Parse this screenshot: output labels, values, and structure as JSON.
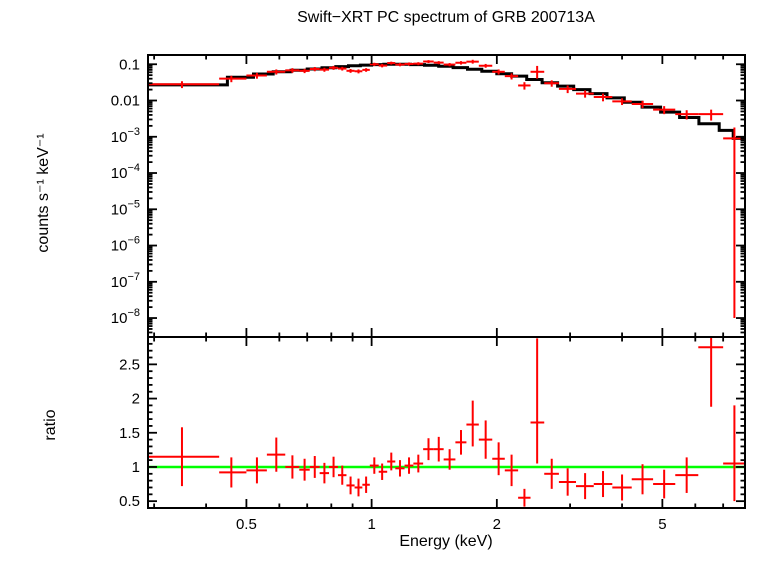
{
  "page": {
    "background": "#ffffff"
  },
  "chart_data": [
    {
      "type": "scatter",
      "panel": "spectrum",
      "title": "Swift−XRT PC spectrum of GRB 200713A",
      "xlabel": "",
      "ylabel": "counts s⁻¹ keV⁻¹",
      "xscale": "log",
      "yscale": "log",
      "xlim": [
        0.29,
        7.9
      ],
      "ylim": [
        3e-09,
        0.18
      ],
      "x_ticks": [
        {
          "v": 0.5,
          "label": "0.5"
        },
        {
          "v": 1,
          "label": "1"
        },
        {
          "v": 2,
          "label": "2"
        },
        {
          "v": 5,
          "label": "5"
        }
      ],
      "y_ticks": [
        {
          "v": 0.1,
          "label": "0.1"
        },
        {
          "v": 0.01,
          "label": "0.01"
        },
        {
          "v": 0.001,
          "exp": -3
        },
        {
          "v": 0.0001,
          "exp": -4
        },
        {
          "v": 1e-05,
          "exp": -5
        },
        {
          "v": 1e-06,
          "exp": -6
        },
        {
          "v": 1e-07,
          "exp": -7
        },
        {
          "v": 1e-08,
          "exp": -8
        }
      ],
      "data_color": "#ff0000",
      "model_color": "#000000",
      "points_format": "[x_lo_keV, x_keV, x_hi_keV, y_lo, y, y_hi] in counts/s/keV",
      "points": [
        [
          0.29,
          0.35,
          0.43,
          0.022,
          0.028,
          0.034
        ],
        [
          0.43,
          0.46,
          0.5,
          0.032,
          0.04,
          0.048
        ],
        [
          0.5,
          0.53,
          0.56,
          0.04,
          0.049,
          0.058
        ],
        [
          0.56,
          0.59,
          0.62,
          0.052,
          0.062,
          0.072
        ],
        [
          0.62,
          0.645,
          0.67,
          0.058,
          0.068,
          0.078
        ],
        [
          0.67,
          0.69,
          0.71,
          0.057,
          0.066,
          0.075
        ],
        [
          0.71,
          0.73,
          0.75,
          0.064,
          0.074,
          0.084
        ],
        [
          0.75,
          0.77,
          0.79,
          0.062,
          0.071,
          0.08
        ],
        [
          0.79,
          0.81,
          0.83,
          0.07,
          0.08,
          0.09
        ],
        [
          0.83,
          0.85,
          0.87,
          0.067,
          0.076,
          0.085
        ],
        [
          0.87,
          0.89,
          0.91,
          0.058,
          0.066,
          0.074
        ],
        [
          0.91,
          0.93,
          0.95,
          0.056,
          0.064,
          0.072
        ],
        [
          0.95,
          0.97,
          0.99,
          0.062,
          0.07,
          0.078
        ],
        [
          0.99,
          1.015,
          1.04,
          0.09,
          0.1,
          0.11
        ],
        [
          1.04,
          1.06,
          1.09,
          0.082,
          0.092,
          0.102
        ],
        [
          1.09,
          1.115,
          1.14,
          0.098,
          0.108,
          0.118
        ],
        [
          1.14,
          1.17,
          1.2,
          0.088,
          0.098,
          0.108
        ],
        [
          1.2,
          1.23,
          1.26,
          0.092,
          0.102,
          0.112
        ],
        [
          1.26,
          1.295,
          1.33,
          0.094,
          0.104,
          0.114
        ],
        [
          1.33,
          1.37,
          1.41,
          0.108,
          0.119,
          0.13
        ],
        [
          1.41,
          1.45,
          1.49,
          0.1,
          0.111,
          0.122
        ],
        [
          1.49,
          1.54,
          1.59,
          0.088,
          0.098,
          0.108
        ],
        [
          1.59,
          1.64,
          1.69,
          0.098,
          0.11,
          0.122
        ],
        [
          1.69,
          1.75,
          1.81,
          0.104,
          0.118,
          0.133
        ],
        [
          1.81,
          1.88,
          1.95,
          0.08,
          0.091,
          0.102
        ],
        [
          1.95,
          2.02,
          2.09,
          0.052,
          0.062,
          0.072
        ],
        [
          2.09,
          2.17,
          2.25,
          0.038,
          0.047,
          0.056
        ],
        [
          2.25,
          2.33,
          2.41,
          0.02,
          0.026,
          0.032
        ],
        [
          2.41,
          2.5,
          2.6,
          0.04,
          0.062,
          0.09
        ],
        [
          2.6,
          2.71,
          2.82,
          0.024,
          0.03,
          0.036
        ],
        [
          2.82,
          2.96,
          3.1,
          0.016,
          0.021,
          0.026
        ],
        [
          3.1,
          3.26,
          3.42,
          0.012,
          0.0155,
          0.019
        ],
        [
          3.42,
          3.6,
          3.79,
          0.0095,
          0.0125,
          0.0155
        ],
        [
          3.79,
          4.0,
          4.22,
          0.0075,
          0.0095,
          0.0115
        ],
        [
          4.22,
          4.48,
          4.75,
          0.0062,
          0.008,
          0.0098
        ],
        [
          4.75,
          5.05,
          5.37,
          0.0042,
          0.0056,
          0.007
        ],
        [
          5.37,
          5.72,
          6.1,
          0.003,
          0.0042,
          0.0054
        ],
        [
          6.1,
          6.55,
          7.0,
          0.0028,
          0.0042,
          0.0056
        ],
        [
          7.0,
          7.45,
          7.88,
          1e-08,
          0.0009,
          0.0018
        ]
      ],
      "model_bins_format": "[e_lo_keV, e_hi_keV, model_value]",
      "model_bins": [
        [
          0.29,
          0.45,
          0.027
        ],
        [
          0.45,
          0.52,
          0.044
        ],
        [
          0.52,
          0.58,
          0.054
        ],
        [
          0.58,
          0.64,
          0.062
        ],
        [
          0.64,
          0.7,
          0.068
        ],
        [
          0.7,
          0.76,
          0.074
        ],
        [
          0.76,
          0.82,
          0.08
        ],
        [
          0.82,
          0.88,
          0.086
        ],
        [
          0.88,
          0.94,
          0.091
        ],
        [
          0.94,
          1.0,
          0.095
        ],
        [
          1.0,
          1.07,
          0.098
        ],
        [
          1.07,
          1.15,
          0.1
        ],
        [
          1.15,
          1.24,
          0.1
        ],
        [
          1.24,
          1.34,
          0.098
        ],
        [
          1.34,
          1.45,
          0.094
        ],
        [
          1.45,
          1.57,
          0.088
        ],
        [
          1.57,
          1.7,
          0.081
        ],
        [
          1.7,
          1.84,
          0.073
        ],
        [
          1.84,
          2.0,
          0.064
        ],
        [
          2.0,
          2.17,
          0.055
        ],
        [
          2.17,
          2.36,
          0.047
        ],
        [
          2.36,
          2.57,
          0.038
        ],
        [
          2.57,
          2.8,
          0.031
        ],
        [
          2.8,
          3.06,
          0.025
        ],
        [
          3.06,
          3.35,
          0.02
        ],
        [
          3.35,
          3.68,
          0.0155
        ],
        [
          3.68,
          4.05,
          0.0118
        ],
        [
          4.05,
          4.47,
          0.0089
        ],
        [
          4.47,
          4.95,
          0.0066
        ],
        [
          4.95,
          5.5,
          0.0048
        ],
        [
          5.5,
          6.12,
          0.0034
        ],
        [
          6.12,
          6.85,
          0.0023
        ],
        [
          6.85,
          7.4,
          0.0015
        ],
        [
          7.4,
          7.88,
          0.0009
        ]
      ]
    },
    {
      "type": "scatter",
      "panel": "ratio",
      "title": "",
      "xlabel": "Energy (keV)",
      "ylabel": "ratio",
      "xscale": "log",
      "yscale": "linear",
      "xlim": [
        0.29,
        7.9
      ],
      "ylim": [
        0.4,
        2.9
      ],
      "x_ticks": [
        {
          "v": 0.5,
          "label": "0.5"
        },
        {
          "v": 1,
          "label": "1"
        },
        {
          "v": 2,
          "label": "2"
        },
        {
          "v": 5,
          "label": "5"
        }
      ],
      "y_ticks": [
        {
          "v": 0.5,
          "label": "0.5"
        },
        {
          "v": 1,
          "label": "1"
        },
        {
          "v": 1.5,
          "label": "1.5"
        },
        {
          "v": 2,
          "label": "2"
        },
        {
          "v": 2.5,
          "label": "2.5"
        }
      ],
      "data_color": "#ff0000",
      "reference_line": {
        "y": 1,
        "color": "#00ff00"
      },
      "points_format": "[x_lo_keV, x_keV, x_hi_keV, ratio_lo, ratio, ratio_hi]",
      "points": [
        [
          0.29,
          0.35,
          0.43,
          0.72,
          1.15,
          1.58
        ],
        [
          0.43,
          0.46,
          0.5,
          0.7,
          0.92,
          1.14
        ],
        [
          0.5,
          0.53,
          0.56,
          0.76,
          0.95,
          1.14
        ],
        [
          0.56,
          0.59,
          0.62,
          0.93,
          1.18,
          1.43
        ],
        [
          0.62,
          0.645,
          0.67,
          0.83,
          1.0,
          1.17
        ],
        [
          0.67,
          0.69,
          0.71,
          0.8,
          0.96,
          1.12
        ],
        [
          0.71,
          0.73,
          0.75,
          0.84,
          1.0,
          1.16
        ],
        [
          0.75,
          0.77,
          0.79,
          0.76,
          0.91,
          1.06
        ],
        [
          0.79,
          0.81,
          0.83,
          0.85,
          1.0,
          1.15
        ],
        [
          0.83,
          0.85,
          0.87,
          0.74,
          0.88,
          1.02
        ],
        [
          0.87,
          0.89,
          0.91,
          0.6,
          0.73,
          0.86
        ],
        [
          0.91,
          0.93,
          0.95,
          0.57,
          0.7,
          0.83
        ],
        [
          0.95,
          0.97,
          0.99,
          0.62,
          0.74,
          0.86
        ],
        [
          0.99,
          1.015,
          1.04,
          0.9,
          1.02,
          1.14
        ],
        [
          1.04,
          1.06,
          1.09,
          0.81,
          0.93,
          1.05
        ],
        [
          1.09,
          1.115,
          1.14,
          0.95,
          1.08,
          1.21
        ],
        [
          1.14,
          1.17,
          1.2,
          0.86,
          0.98,
          1.1
        ],
        [
          1.2,
          1.23,
          1.26,
          0.9,
          1.02,
          1.14
        ],
        [
          1.26,
          1.295,
          1.33,
          0.92,
          1.05,
          1.18
        ],
        [
          1.33,
          1.37,
          1.41,
          1.1,
          1.26,
          1.42
        ],
        [
          1.41,
          1.45,
          1.49,
          1.08,
          1.26,
          1.44
        ],
        [
          1.49,
          1.54,
          1.59,
          0.96,
          1.11,
          1.26
        ],
        [
          1.59,
          1.64,
          1.69,
          1.18,
          1.36,
          1.54
        ],
        [
          1.69,
          1.75,
          1.81,
          1.3,
          1.62,
          1.97
        ],
        [
          1.81,
          1.88,
          1.95,
          1.12,
          1.4,
          1.68
        ],
        [
          1.95,
          2.02,
          2.09,
          0.88,
          1.12,
          1.36
        ],
        [
          2.09,
          2.17,
          2.25,
          0.72,
          0.95,
          1.18
        ],
        [
          2.25,
          2.33,
          2.41,
          0.42,
          0.55,
          0.68
        ],
        [
          2.41,
          2.5,
          2.6,
          1.05,
          1.65,
          2.88
        ],
        [
          2.6,
          2.71,
          2.82,
          0.68,
          0.9,
          1.12
        ],
        [
          2.82,
          2.96,
          3.1,
          0.58,
          0.78,
          0.98
        ],
        [
          3.1,
          3.26,
          3.42,
          0.53,
          0.72,
          0.91
        ],
        [
          3.42,
          3.6,
          3.79,
          0.56,
          0.75,
          0.94
        ],
        [
          3.79,
          4.0,
          4.22,
          0.51,
          0.7,
          0.89
        ],
        [
          4.22,
          4.48,
          4.75,
          0.6,
          0.82,
          1.04
        ],
        [
          4.75,
          5.05,
          5.37,
          0.54,
          0.75,
          0.96
        ],
        [
          5.37,
          5.72,
          6.1,
          0.62,
          0.88,
          1.14
        ],
        [
          6.1,
          6.55,
          7.0,
          1.88,
          2.75,
          3.4
        ],
        [
          7.0,
          7.45,
          7.88,
          0.5,
          1.05,
          1.9
        ]
      ]
    }
  ]
}
